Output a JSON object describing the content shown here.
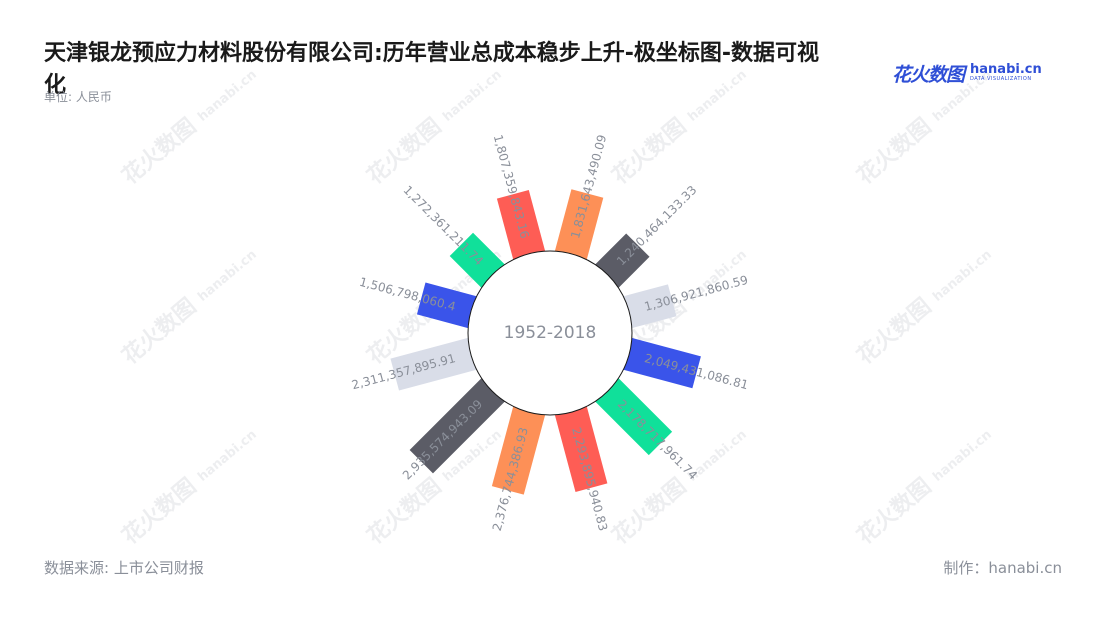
{
  "header": {
    "title": "天津银龙预应力材料股份有限公司:历年营业总成本稳步上升-极坐标图-数据可视化",
    "unit": "单位: 人民币"
  },
  "logo": {
    "cn": "花火数图",
    "en": "hanabi.cn",
    "en_sub": "DATA VISUALIZATION"
  },
  "footer": {
    "source": "数据来源: 上市公司财报",
    "made_by": "制作：hanabi.cn"
  },
  "watermark": {
    "cn": "花火数图",
    "en": "hanabi.cn"
  },
  "chart_data": {
    "type": "bar",
    "coordinate": "polar",
    "center_label": "1952-2018",
    "label_color": "#8a8f99",
    "inner_circle_stroke": "#1a1a1a",
    "palette": [
      "#fe5d55",
      "#fd9057",
      "#5b5c66",
      "#d9dde8",
      "#3a54ea",
      "#10e09a"
    ],
    "bars": [
      {
        "label": "1,807,359,843.16",
        "value": 1807359843.16
      },
      {
        "label": "1,831,643,490.09",
        "value": 1831643490.09
      },
      {
        "label": "1,240,464,133.33",
        "value": 1240464133.33
      },
      {
        "label": "1,306,921,860.59",
        "value": 1306921860.59
      },
      {
        "label": "2,049,431,086.81",
        "value": 2049431086.81
      },
      {
        "label": "2,178,717,961.74",
        "value": 2178717961.74
      },
      {
        "label": "2,293,895,940.83",
        "value": 2293895940.83
      },
      {
        "label": "2,376,744,386.93",
        "value": 2376744386.93
      },
      {
        "label": "2,935,574,943.09",
        "value": 2935574943.09
      },
      {
        "label": "2,311,357,895.91",
        "value": 2311357895.91
      },
      {
        "label": "1,506,798,060.4",
        "value": 1506798060.4
      },
      {
        "label": "1,272,361,211.74",
        "value": 1272361211.74
      }
    ]
  }
}
